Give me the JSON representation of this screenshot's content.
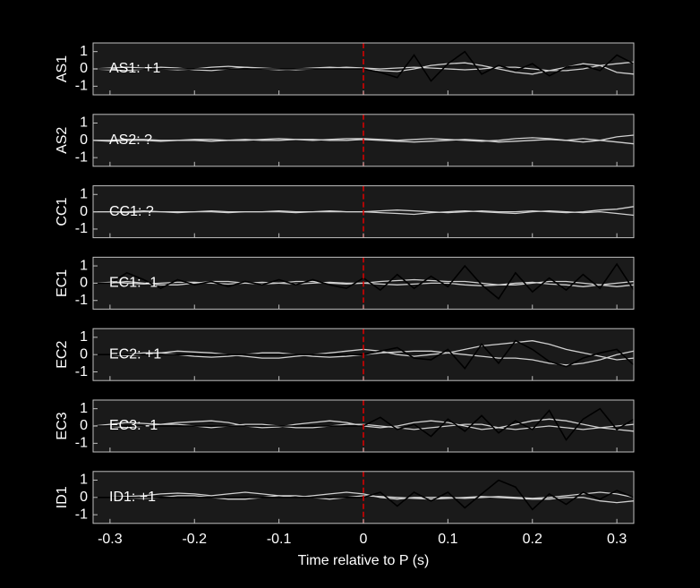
{
  "chart_data": [
    {
      "type": "line",
      "ylabel": "AS1",
      "annotation": "AS1: +1",
      "annotation_color": "#c00000",
      "vline": 0,
      "vline_color": "#e00000",
      "xlim": [
        -0.32,
        0.32
      ],
      "xticks": [
        -0.3,
        -0.2,
        -0.1,
        0,
        0.1,
        0.2,
        0.3
      ],
      "ylim": [
        -1.5,
        1.5
      ],
      "yticks": [
        -1,
        0,
        1
      ],
      "x": [
        -0.32,
        -0.3,
        -0.28,
        -0.26,
        -0.24,
        -0.22,
        -0.2,
        -0.18,
        -0.16,
        -0.14,
        -0.12,
        -0.1,
        -0.08,
        -0.06,
        -0.04,
        -0.02,
        0,
        0.02,
        0.04,
        0.06,
        0.08,
        0.1,
        0.12,
        0.14,
        0.16,
        0.18,
        0.2,
        0.22,
        0.24,
        0.26,
        0.28,
        0.3,
        0.32
      ],
      "series": [
        {
          "color": "#d0d0d0",
          "values": [
            0,
            0.05,
            0.1,
            0.05,
            0,
            -0.05,
            0,
            0.1,
            0.15,
            0.1,
            0,
            -0.05,
            0,
            0.05,
            0.1,
            0.05,
            0,
            -0.1,
            -0.15,
            0,
            0.2,
            0.3,
            0.35,
            0.2,
            0,
            -0.2,
            -0.3,
            -0.1,
            0.1,
            0.3,
            0.2,
            -0.2,
            -0.3
          ]
        },
        {
          "color": "#d0d0d0",
          "values": [
            0,
            -0.05,
            -0.1,
            0,
            0.1,
            0.05,
            -0.05,
            -0.1,
            0,
            0.1,
            0.05,
            0,
            -0.05,
            0,
            0.05,
            0.1,
            0.05,
            0,
            0.05,
            0.1,
            0.05,
            0,
            -0.05,
            0,
            0.1,
            0.1,
            0,
            -0.1,
            -0.1,
            0,
            0.2,
            0.3,
            0.4
          ]
        },
        {
          "color": "#000000",
          "values": [
            0,
            0,
            0,
            0,
            0,
            0,
            0,
            0,
            0,
            0,
            0,
            0,
            0,
            0,
            0,
            0,
            0,
            -0.2,
            -0.5,
            0.8,
            -0.7,
            0.3,
            1.0,
            -0.3,
            0.2,
            -0.1,
            0.3,
            -0.4,
            0.1,
            0.2,
            -0.1,
            0.8,
            0.3
          ]
        }
      ]
    },
    {
      "type": "line",
      "ylabel": "AS2",
      "annotation": "AS2: ?",
      "annotation_color": "#8c8c8c",
      "vline": 0,
      "vline_color": "#e00000",
      "xlim": [
        -0.32,
        0.32
      ],
      "xticks": [
        -0.3,
        -0.2,
        -0.1,
        0,
        0.1,
        0.2,
        0.3
      ],
      "ylim": [
        -1.5,
        1.5
      ],
      "yticks": [
        -1,
        0,
        1
      ],
      "x": [
        -0.32,
        -0.3,
        -0.28,
        -0.26,
        -0.24,
        -0.22,
        -0.2,
        -0.18,
        -0.16,
        -0.14,
        -0.12,
        -0.1,
        -0.08,
        -0.06,
        -0.04,
        -0.02,
        0,
        0.02,
        0.04,
        0.06,
        0.08,
        0.1,
        0.12,
        0.14,
        0.16,
        0.18,
        0.2,
        0.22,
        0.24,
        0.26,
        0.28,
        0.3,
        0.32
      ],
      "series": [
        {
          "color": "#d0d0d0",
          "values": [
            0,
            0,
            0.05,
            0.05,
            0,
            0,
            0.05,
            0.05,
            0,
            0,
            0.05,
            0.1,
            0.05,
            0,
            0.05,
            0.1,
            0.1,
            0.05,
            0,
            0.05,
            0.1,
            0.05,
            0,
            -0.05,
            0,
            0.1,
            0.15,
            0.1,
            0,
            -0.1,
            0,
            0.2,
            0.3
          ]
        },
        {
          "color": "#d0d0d0",
          "values": [
            0,
            -0.05,
            0,
            0,
            -0.05,
            0,
            0,
            -0.05,
            0,
            0.05,
            0,
            0,
            0.05,
            0.05,
            0,
            0,
            0.05,
            0,
            -0.05,
            -0.1,
            -0.05,
            0,
            0.05,
            0,
            -0.1,
            -0.05,
            0,
            0.05,
            0,
            0.1,
            0,
            -0.1,
            -0.2
          ]
        }
      ]
    },
    {
      "type": "line",
      "ylabel": "CC1",
      "annotation": "CC1: ?",
      "annotation_color": "#8c8c8c",
      "vline": 0,
      "vline_color": "#e00000",
      "xlim": [
        -0.32,
        0.32
      ],
      "xticks": [
        -0.3,
        -0.2,
        -0.1,
        0,
        0.1,
        0.2,
        0.3
      ],
      "ylim": [
        -1.5,
        1.5
      ],
      "yticks": [
        -1,
        0,
        1
      ],
      "x": [
        -0.32,
        -0.3,
        -0.28,
        -0.26,
        -0.24,
        -0.22,
        -0.2,
        -0.18,
        -0.16,
        -0.14,
        -0.12,
        -0.1,
        -0.08,
        -0.06,
        -0.04,
        -0.02,
        0,
        0.02,
        0.04,
        0.06,
        0.08,
        0.1,
        0.12,
        0.14,
        0.16,
        0.18,
        0.2,
        0.22,
        0.24,
        0.26,
        0.28,
        0.3,
        0.32
      ],
      "series": [
        {
          "color": "#d0d0d0",
          "values": [
            0,
            0,
            0,
            0.05,
            0,
            0,
            0,
            0.05,
            0,
            0,
            0,
            0.05,
            0,
            0,
            0.05,
            0,
            0,
            0.05,
            0.1,
            0.05,
            0,
            -0.05,
            0,
            0.05,
            0,
            0,
            0.05,
            0,
            -0.05,
            0,
            0.1,
            0.15,
            0.3
          ]
        },
        {
          "color": "#d0d0d0",
          "values": [
            0,
            0,
            -0.05,
            0,
            0,
            -0.05,
            0,
            0,
            -0.05,
            0,
            0,
            0,
            -0.05,
            0,
            0,
            0,
            0,
            -0.05,
            -0.1,
            -0.15,
            -0.05,
            0,
            0.05,
            0,
            -0.05,
            -0.1,
            0,
            0.05,
            0,
            -0.05,
            0,
            -0.1,
            -0.2
          ]
        }
      ]
    },
    {
      "type": "line",
      "ylabel": "EC1",
      "annotation": "EC1: -1",
      "annotation_color": "#0000b0",
      "vline": 0,
      "vline_color": "#e00000",
      "xlim": [
        -0.32,
        0.32
      ],
      "xticks": [
        -0.3,
        -0.2,
        -0.1,
        0,
        0.1,
        0.2,
        0.3
      ],
      "ylim": [
        -1.5,
        1.5
      ],
      "yticks": [
        -1,
        0,
        1
      ],
      "x": [
        -0.32,
        -0.3,
        -0.28,
        -0.26,
        -0.24,
        -0.22,
        -0.2,
        -0.18,
        -0.16,
        -0.14,
        -0.12,
        -0.1,
        -0.08,
        -0.06,
        -0.04,
        -0.02,
        0,
        0.02,
        0.04,
        0.06,
        0.08,
        0.1,
        0.12,
        0.14,
        0.16,
        0.18,
        0.2,
        0.22,
        0.24,
        0.26,
        0.28,
        0.3,
        0.32
      ],
      "series": [
        {
          "color": "#d0d0d0",
          "values": [
            0,
            0,
            0.1,
            0,
            -0.1,
            -0.1,
            0,
            0.1,
            0.1,
            0,
            -0.05,
            0,
            0.1,
            0.1,
            0,
            -0.05,
            0,
            0.1,
            0.15,
            0.2,
            0.15,
            0.1,
            0.1,
            0,
            -0.1,
            -0.1,
            0,
            0.1,
            0.1,
            0,
            -0.1,
            -0.2,
            -0.1
          ]
        },
        {
          "color": "#d0d0d0",
          "values": [
            0,
            0.05,
            0,
            -0.05,
            0,
            0.05,
            0.05,
            0,
            -0.05,
            0,
            0.05,
            0,
            -0.05,
            0,
            0.05,
            0,
            0,
            -0.05,
            -0.1,
            -0.05,
            0,
            0,
            -0.1,
            -0.15,
            -0.1,
            0,
            0.05,
            -0.05,
            -0.1,
            -0.2,
            -0.1,
            0,
            0.1
          ]
        },
        {
          "color": "#000000",
          "values": [
            0,
            0,
            0.6,
            0.2,
            -0.3,
            0.2,
            -0.1,
            0.1,
            -0.2,
            0.1,
            -0.1,
            0.2,
            -0.1,
            0.2,
            -0.1,
            -0.3,
            0.3,
            -0.4,
            0.5,
            -0.3,
            0.4,
            -0.2,
            1.0,
            -0.1,
            -0.9,
            0.6,
            -0.5,
            0.3,
            -0.4,
            0.5,
            -0.3,
            1.1,
            -0.4
          ]
        }
      ]
    },
    {
      "type": "line",
      "ylabel": "EC2",
      "annotation": "EC2: +1",
      "annotation_color": "#c00000",
      "vline": 0,
      "vline_color": "#e00000",
      "xlim": [
        -0.32,
        0.32
      ],
      "xticks": [
        -0.3,
        -0.2,
        -0.1,
        0,
        0.1,
        0.2,
        0.3
      ],
      "ylim": [
        -1.5,
        1.5
      ],
      "yticks": [
        -1,
        0,
        1
      ],
      "x": [
        -0.32,
        -0.3,
        -0.28,
        -0.26,
        -0.24,
        -0.22,
        -0.2,
        -0.18,
        -0.16,
        -0.14,
        -0.12,
        -0.1,
        -0.08,
        -0.06,
        -0.04,
        -0.02,
        0,
        0.02,
        0.04,
        0.06,
        0.08,
        0.1,
        0.12,
        0.14,
        0.16,
        0.18,
        0.2,
        0.22,
        0.24,
        0.26,
        0.28,
        0.3,
        0.32
      ],
      "series": [
        {
          "color": "#d0d0d0",
          "values": [
            0,
            0,
            -0.05,
            0,
            0.1,
            0.2,
            0.15,
            0.1,
            0,
            -0.1,
            -0.2,
            -0.2,
            -0.1,
            0,
            0.1,
            0.2,
            0.3,
            0.2,
            0,
            -0.1,
            0,
            0.1,
            0.3,
            0.5,
            0.6,
            0.7,
            0.8,
            0.6,
            0.3,
            0.1,
            -0.1,
            -0.3,
            -0.2
          ]
        },
        {
          "color": "#d0d0d0",
          "values": [
            0,
            0,
            0,
            0.1,
            0.1,
            0,
            -0.1,
            -0.15,
            -0.1,
            0,
            0.1,
            0.1,
            0,
            -0.1,
            -0.15,
            -0.1,
            0,
            0.1,
            0.15,
            0.2,
            0.2,
            0.1,
            0,
            -0.1,
            -0.2,
            -0.2,
            -0.3,
            -0.5,
            -0.6,
            -0.5,
            -0.3,
            0,
            0.2
          ]
        },
        {
          "color": "#000000",
          "values": [
            0,
            0,
            0,
            0,
            0,
            0,
            0,
            0,
            0,
            0,
            0,
            0,
            0,
            0,
            0,
            0,
            0,
            0.2,
            0.4,
            -0.2,
            -0.3,
            0.3,
            -0.8,
            0.6,
            -0.5,
            0.8,
            0.3,
            -0.4,
            -0.7,
            -0.2,
            0.1,
            0.3,
            -0.6
          ]
        }
      ]
    },
    {
      "type": "line",
      "ylabel": "EC3",
      "annotation": "EC3: -1",
      "annotation_color": "#0000b0",
      "vline": 0,
      "vline_color": "#e00000",
      "xlim": [
        -0.32,
        0.32
      ],
      "xticks": [
        -0.3,
        -0.2,
        -0.1,
        0,
        0.1,
        0.2,
        0.3
      ],
      "ylim": [
        -1.5,
        1.5
      ],
      "yticks": [
        -1,
        0,
        1
      ],
      "x": [
        -0.32,
        -0.3,
        -0.28,
        -0.26,
        -0.24,
        -0.22,
        -0.2,
        -0.18,
        -0.16,
        -0.14,
        -0.12,
        -0.1,
        -0.08,
        -0.06,
        -0.04,
        -0.02,
        0,
        0.02,
        0.04,
        0.06,
        0.08,
        0.1,
        0.12,
        0.14,
        0.16,
        0.18,
        0.2,
        0.22,
        0.24,
        0.26,
        0.28,
        0.3,
        0.32
      ],
      "series": [
        {
          "color": "#d0d0d0",
          "values": [
            0,
            0.1,
            0.2,
            0.15,
            0.1,
            0.2,
            0.25,
            0.3,
            0.2,
            0,
            -0.1,
            -0.05,
            0.1,
            0.2,
            0.3,
            0.2,
            0,
            -0.1,
            0,
            0.2,
            0.3,
            0.2,
            0,
            -0.2,
            -0.1,
            0.1,
            0.3,
            0.4,
            0.3,
            0.1,
            -0.1,
            0,
            0.1
          ]
        },
        {
          "color": "#d0d0d0",
          "values": [
            0,
            0,
            -0.1,
            0,
            0.1,
            0.1,
            0,
            -0.1,
            0,
            0.1,
            0.1,
            0,
            -0.1,
            -0.1,
            0,
            0.1,
            0.1,
            0,
            -0.1,
            -0.2,
            -0.1,
            0,
            0.1,
            0.1,
            -0.1,
            -0.2,
            -0.1,
            0,
            -0.1,
            -0.2,
            -0.1,
            -0.2,
            -0.3
          ]
        },
        {
          "color": "#000000",
          "values": [
            0,
            0,
            0,
            0,
            0,
            0,
            0,
            0,
            0,
            0,
            0,
            0,
            0,
            0,
            0,
            0,
            0,
            0.5,
            -0.2,
            0.1,
            -0.6,
            0.4,
            -0.3,
            0.6,
            -0.4,
            0.3,
            -0.2,
            0.9,
            -0.8,
            0.4,
            1.0,
            -0.2,
            0.4
          ]
        }
      ]
    },
    {
      "type": "line",
      "ylabel": "ID1",
      "annotation": "ID1: +1",
      "annotation_color": "#c00000",
      "vline": 0,
      "vline_color": "#e00000",
      "xlabel": "Time relative to P (s)",
      "xlim": [
        -0.32,
        0.32
      ],
      "xticks": [
        -0.3,
        -0.2,
        -0.1,
        0,
        0.1,
        0.2,
        0.3
      ],
      "ylim": [
        -1.5,
        1.5
      ],
      "yticks": [
        -1,
        0,
        1
      ],
      "x": [
        -0.32,
        -0.3,
        -0.28,
        -0.26,
        -0.24,
        -0.22,
        -0.2,
        -0.18,
        -0.16,
        -0.14,
        -0.12,
        -0.1,
        -0.08,
        -0.06,
        -0.04,
        -0.02,
        0,
        0.02,
        0.04,
        0.06,
        0.08,
        0.1,
        0.12,
        0.14,
        0.16,
        0.18,
        0.2,
        0.22,
        0.24,
        0.26,
        0.28,
        0.3,
        0.32
      ],
      "series": [
        {
          "color": "#d0d0d0",
          "values": [
            0,
            0,
            0.05,
            0.1,
            0.2,
            0.25,
            0.2,
            0.1,
            0.2,
            0.3,
            0.2,
            0.1,
            0,
            0.1,
            0.2,
            0.3,
            0.2,
            0,
            -0.1,
            0,
            0,
            0,
            -0.05,
            0,
            0.05,
            0,
            -0.05,
            0,
            0.1,
            0.2,
            0.3,
            0.2,
            0
          ]
        },
        {
          "color": "#d0d0d0",
          "values": [
            0,
            0,
            0,
            -0.05,
            0,
            0.1,
            0.1,
            0,
            -0.1,
            -0.1,
            0,
            0.1,
            0.1,
            0,
            -0.1,
            0,
            0.1,
            0.05,
            0,
            -0.05,
            -0.1,
            -0.05,
            0,
            0.05,
            0,
            -0.05,
            -0.1,
            -0.1,
            0,
            0,
            -0.2,
            -0.3,
            -0.2
          ]
        },
        {
          "color": "#000000",
          "values": [
            0,
            0,
            0,
            0,
            0,
            0,
            0,
            0,
            0,
            0,
            0,
            0,
            0,
            0,
            0,
            0,
            0,
            0.3,
            -0.5,
            0.3,
            -0.2,
            0.3,
            -0.6,
            0.2,
            1.0,
            0.6,
            -0.7,
            0.2,
            -0.4,
            0.3,
            -0.1,
            0.4,
            0
          ]
        }
      ]
    }
  ]
}
